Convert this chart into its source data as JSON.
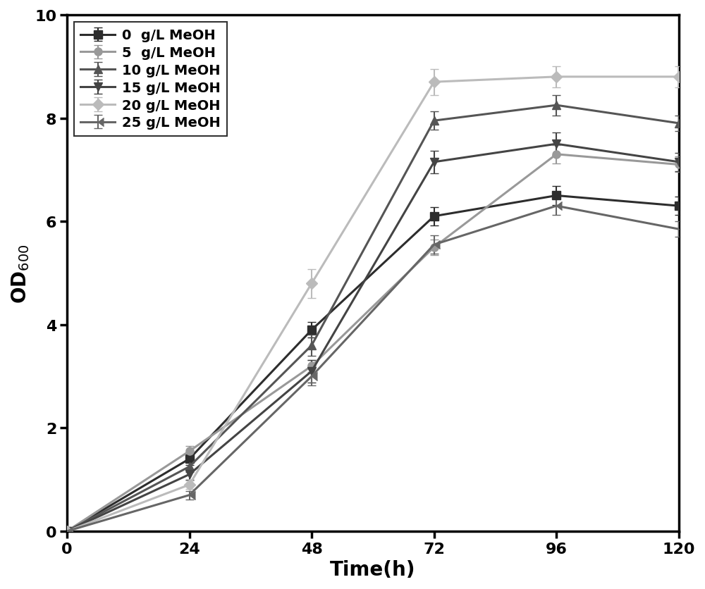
{
  "title": "",
  "xlabel": "Time(h)",
  "xlim": [
    0,
    120
  ],
  "ylim": [
    0,
    10
  ],
  "xticks": [
    0,
    24,
    48,
    72,
    96,
    120
  ],
  "yticks": [
    0,
    2,
    4,
    6,
    8,
    10
  ],
  "time_points": [
    0,
    24,
    48,
    72,
    96,
    120
  ],
  "series": [
    {
      "label": "0  g/L MeOH",
      "color": "#2d2d2d",
      "marker": "s",
      "values": [
        0.0,
        1.4,
        3.9,
        6.1,
        6.5,
        6.3
      ],
      "errors": [
        0.0,
        0.12,
        0.15,
        0.18,
        0.18,
        0.18
      ]
    },
    {
      "label": "5  g/L MeOH",
      "color": "#999999",
      "marker": "o",
      "values": [
        0.0,
        1.55,
        3.2,
        5.5,
        7.3,
        7.1
      ],
      "errors": [
        0.0,
        0.1,
        0.12,
        0.15,
        0.18,
        0.15
      ]
    },
    {
      "label": "10 g/L MeOH",
      "color": "#555555",
      "marker": "^",
      "values": [
        0.0,
        1.25,
        3.6,
        7.95,
        8.25,
        7.9
      ],
      "errors": [
        0.0,
        0.1,
        0.2,
        0.18,
        0.2,
        0.15
      ]
    },
    {
      "label": "15 g/L MeOH",
      "color": "#444444",
      "marker": "v",
      "values": [
        0.0,
        1.1,
        3.1,
        7.15,
        7.5,
        7.15
      ],
      "errors": [
        0.0,
        0.1,
        0.22,
        0.22,
        0.22,
        0.18
      ]
    },
    {
      "label": "20 g/L MeOH",
      "color": "#bbbbbb",
      "marker": "D",
      "values": [
        0.0,
        0.9,
        4.8,
        8.7,
        8.8,
        8.8
      ],
      "errors": [
        0.0,
        0.08,
        0.28,
        0.25,
        0.2,
        0.2
      ]
    },
    {
      "label": "25 g/L MeOH",
      "color": "#666666",
      "marker": 4,
      "values": [
        0.0,
        0.7,
        3.0,
        5.55,
        6.3,
        5.85
      ],
      "errors": [
        0.0,
        0.08,
        0.18,
        0.18,
        0.18,
        0.15
      ]
    }
  ],
  "linewidth": 2.2,
  "markersize": 8,
  "capsize": 4,
  "legend_fontsize": 14,
  "axis_fontsize": 20,
  "tick_fontsize": 16,
  "ylabel_fontsize": 20
}
